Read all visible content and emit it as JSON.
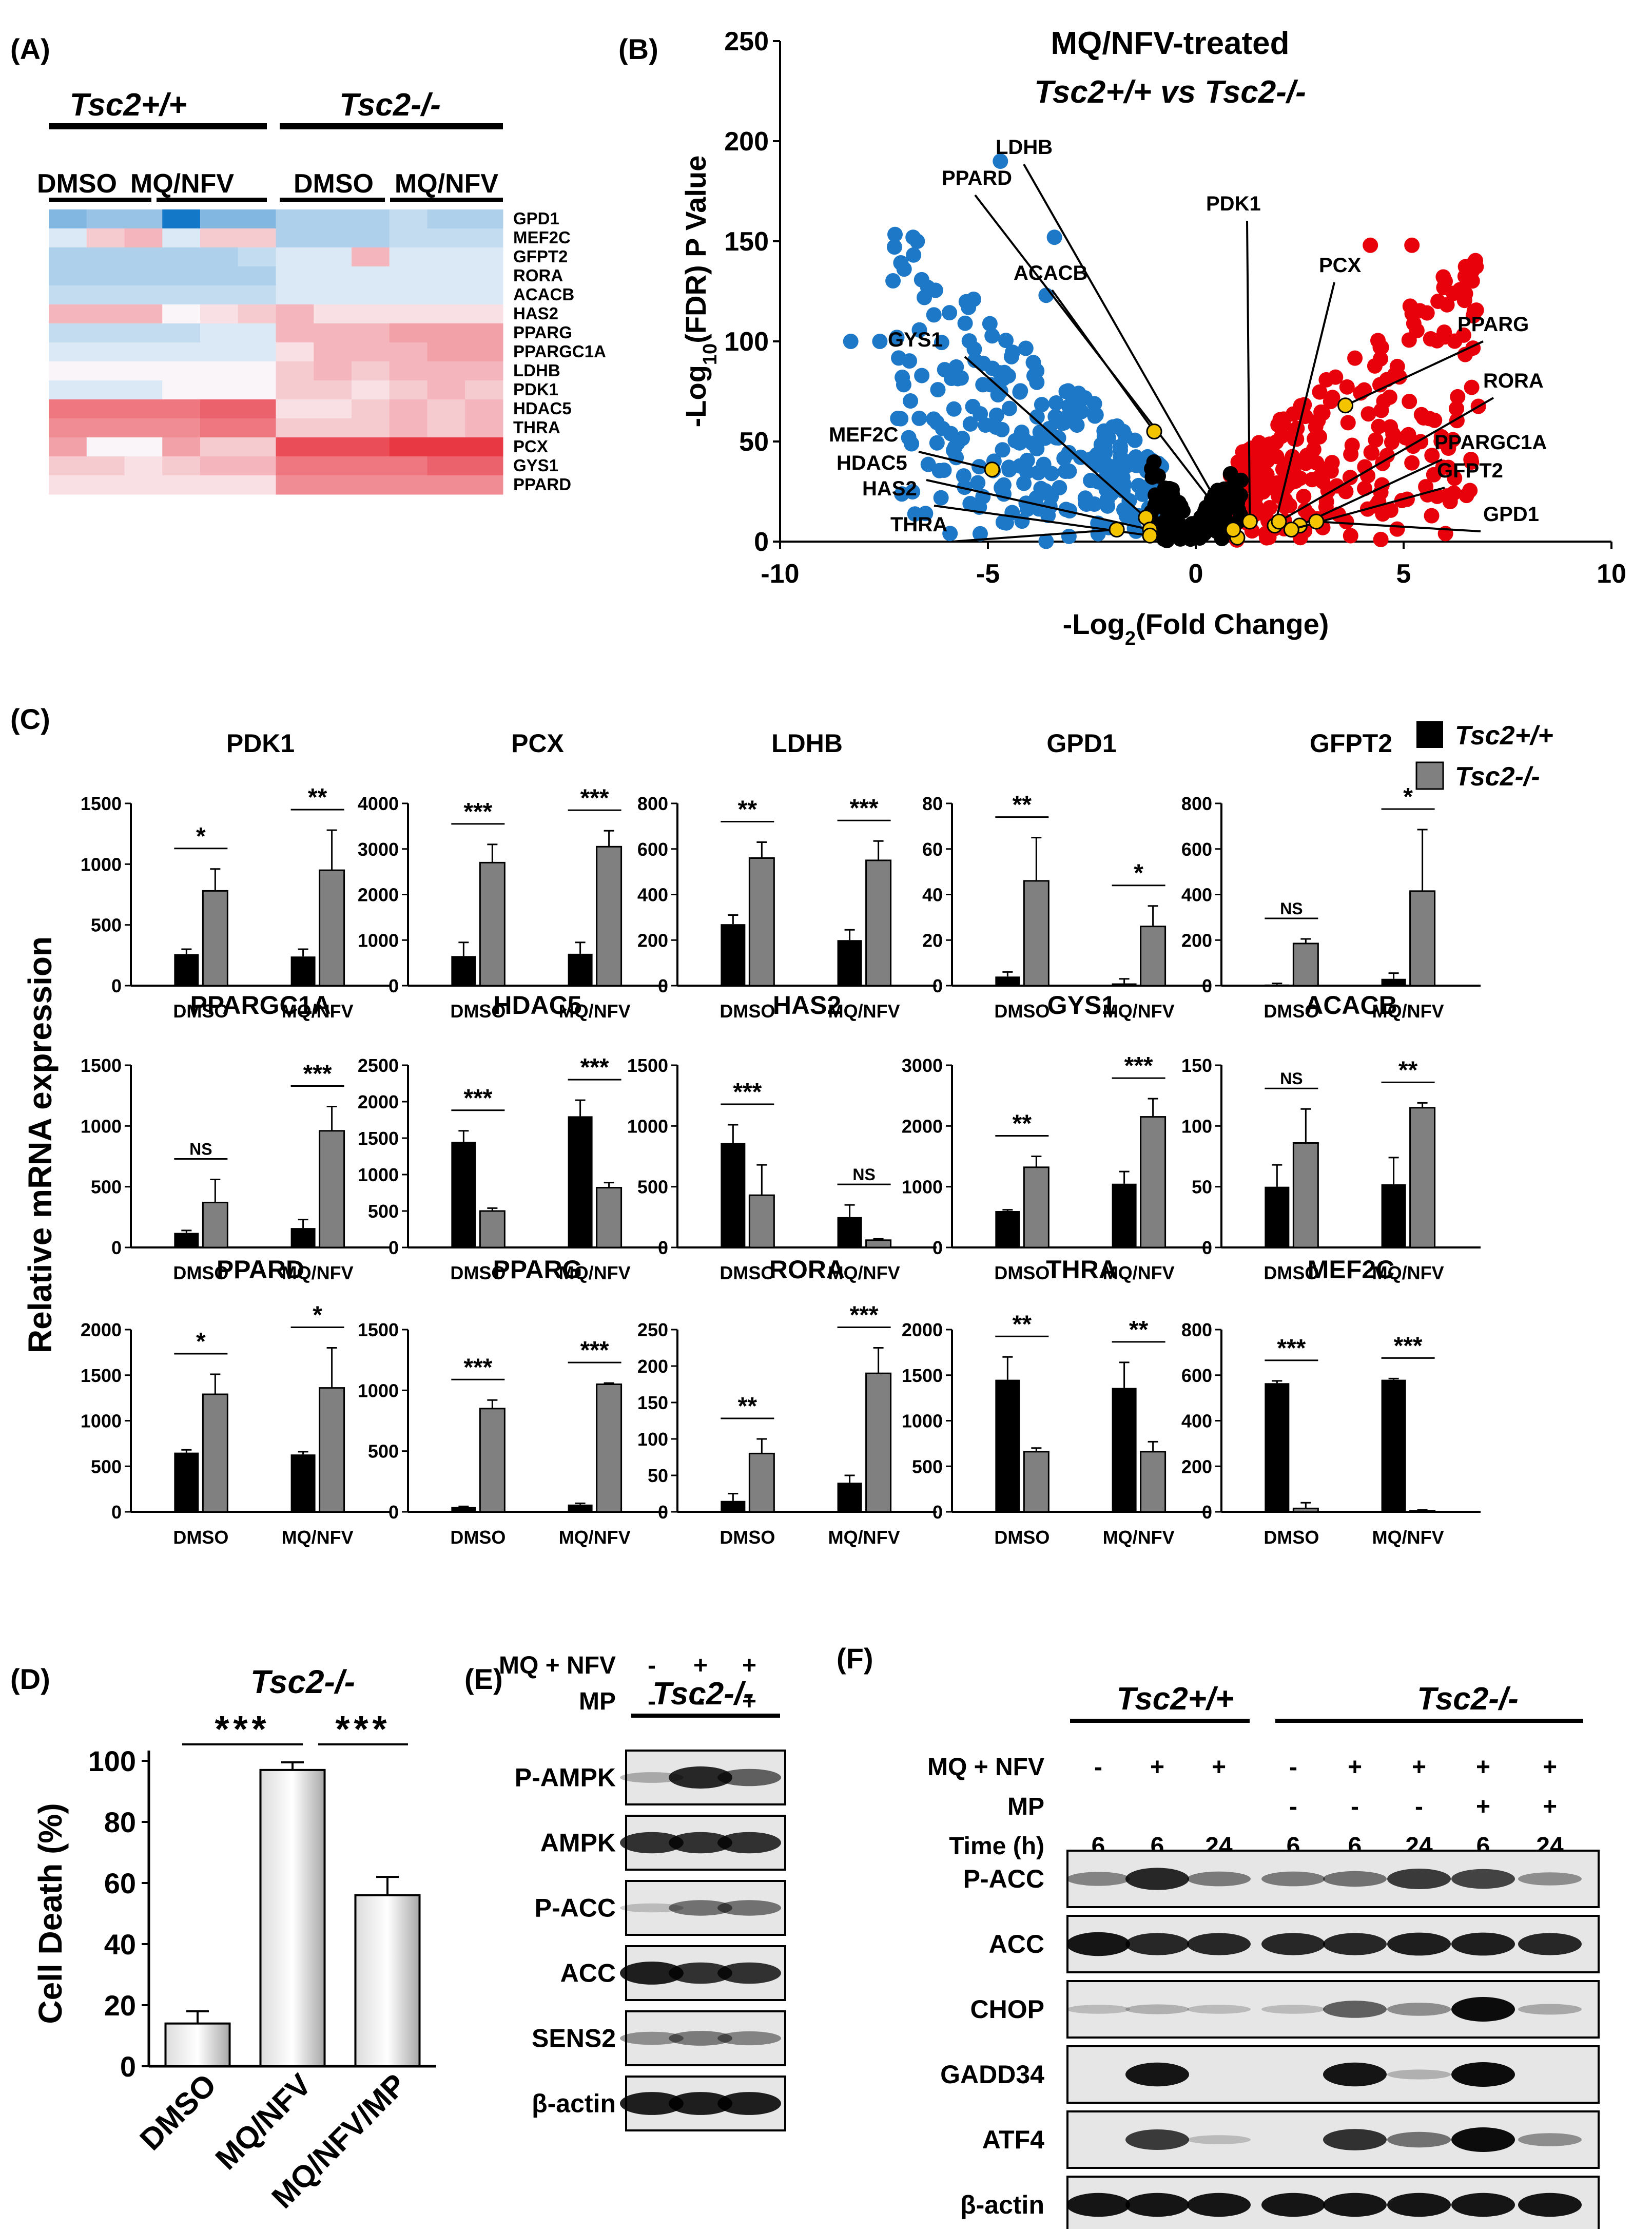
{
  "panelA": {
    "label": "(A)",
    "group_wt": "Tsc2+/+",
    "group_ko": "Tsc2-/-",
    "conditions": [
      "DMSO",
      "MQ/NFV",
      "DMSO",
      "MQ/NFV"
    ],
    "genes": [
      "GPD1",
      "MEF2C",
      "GFPT2",
      "RORA",
      "ACACB",
      "HAS2",
      "PPARG",
      "PPARGC1A",
      "LDHB",
      "PDK1",
      "HDAC5",
      "THRA",
      "PCX",
      "GYS1",
      "PPARD"
    ],
    "heat": [
      [
        -0.5,
        -0.4,
        -0.4,
        -1,
        -0.5,
        -0.5,
        -0.3,
        -0.3,
        -0.3,
        -0.2,
        -0.3,
        -0.3
      ],
      [
        -0.1,
        0.2,
        0.3,
        -0.1,
        0.2,
        0.2,
        -0.3,
        -0.3,
        -0.3,
        -0.2,
        -0.2,
        -0.2
      ],
      [
        -0.3,
        -0.3,
        -0.3,
        -0.3,
        -0.3,
        -0.2,
        -0.1,
        -0.1,
        0.3,
        -0.1,
        -0.1,
        -0.1
      ],
      [
        -0.3,
        -0.3,
        -0.3,
        -0.3,
        -0.3,
        -0.3,
        -0.1,
        -0.1,
        -0.1,
        -0.1,
        -0.1,
        -0.1
      ],
      [
        -0.2,
        -0.2,
        -0.2,
        -0.2,
        -0.2,
        -0.2,
        -0.1,
        -0.1,
        -0.1,
        -0.1,
        -0.1,
        -0.1
      ],
      [
        0.3,
        0.3,
        0.3,
        0,
        0.1,
        0.2,
        0.3,
        0.1,
        0.1,
        0.1,
        0.1,
        0.1
      ],
      [
        -0.2,
        -0.2,
        -0.2,
        -0.2,
        -0.1,
        -0.1,
        0.3,
        0.3,
        0.3,
        0.4,
        0.4,
        0.4
      ],
      [
        -0.1,
        -0.1,
        -0.1,
        -0.1,
        -0.1,
        -0.1,
        0.1,
        0.3,
        0.3,
        0.3,
        0.4,
        0.4
      ],
      [
        0,
        0,
        0,
        0,
        0,
        0,
        0.2,
        0.3,
        0.2,
        0.3,
        0.3,
        0.3
      ],
      [
        -0.1,
        -0.1,
        -0.1,
        0,
        0,
        0,
        0.2,
        0.2,
        0.1,
        0.2,
        0.3,
        0.2
      ],
      [
        0.6,
        0.6,
        0.6,
        0.6,
        0.7,
        0.7,
        0.1,
        0.1,
        0.2,
        0.3,
        0.2,
        0.3
      ],
      [
        0.5,
        0.5,
        0.5,
        0.5,
        0.6,
        0.6,
        0.2,
        0.2,
        0.2,
        0.3,
        0.2,
        0.3
      ],
      [
        0.4,
        0,
        0,
        0.4,
        0.2,
        0.2,
        0.8,
        0.8,
        0.8,
        0.9,
        0.9,
        0.9
      ],
      [
        0.2,
        0.2,
        0.1,
        0.2,
        0.3,
        0.3,
        0.6,
        0.6,
        0.6,
        0.6,
        0.7,
        0.7
      ],
      [
        0.1,
        0.1,
        0.1,
        0.1,
        0.1,
        0.1,
        0.5,
        0.5,
        0.5,
        0.5,
        0.5,
        0.5
      ]
    ]
  },
  "panelB": {
    "label": "(B)",
    "title_line1": "MQ/NFV-treated",
    "title_line2": "Tsc2+/+ vs Tsc2-/-",
    "chart_data": {
      "type": "scatter",
      "title": "MQ/NFV-treated Tsc2+/+ vs Tsc2-/-",
      "xlabel": "-Log2(Fold Change)",
      "ylabel": "-Log10(FDR) P Value",
      "xlim": [
        -10,
        10
      ],
      "ylim": [
        0,
        250
      ],
      "xticks": [
        -10,
        -5,
        0,
        5,
        10
      ],
      "yticks": [
        0,
        50,
        100,
        150,
        200,
        250
      ],
      "colors": {
        "down": "#1e78c8",
        "up": "#e8000a",
        "ns": "#000000",
        "highlight": "#f5c400"
      },
      "labeled_genes": [
        {
          "gene": "LDHB",
          "x": 1.0,
          "y": 2
        },
        {
          "gene": "PPARD",
          "x": 0.9,
          "y": 6
        },
        {
          "gene": "PDK1",
          "x": 1.3,
          "y": 10
        },
        {
          "gene": "PCX",
          "x": 1.9,
          "y": 8
        },
        {
          "gene": "ACACB",
          "x": -1.0,
          "y": 55
        },
        {
          "gene": "PPARG",
          "x": 3.6,
          "y": 68
        },
        {
          "gene": "GYS1",
          "x": -1.2,
          "y": 12
        },
        {
          "gene": "RORA",
          "x": 2.0,
          "y": 10
        },
        {
          "gene": "MEF2C",
          "x": -4.9,
          "y": 36
        },
        {
          "gene": "PPARGC1A",
          "x": 2.5,
          "y": 8
        },
        {
          "gene": "HDAC5",
          "x": -1.1,
          "y": 6
        },
        {
          "gene": "GFPT2",
          "x": 2.3,
          "y": 6
        },
        {
          "gene": "HAS2",
          "x": -1.1,
          "y": 3
        },
        {
          "gene": "GPD1",
          "x": 2.9,
          "y": 10
        },
        {
          "gene": "THRA",
          "x": -1.9,
          "y": 6
        }
      ]
    }
  },
  "panelC": {
    "label": "(C)",
    "ylabel": "Relative mRNA expression",
    "legend": [
      "Tsc2+/+",
      "Tsc2-/-"
    ],
    "xcats": [
      "DMSO",
      "MQ/NFV"
    ],
    "chart_data": [
      {
        "type": "bar",
        "title": "PDK1",
        "ylim": [
          0,
          1500
        ],
        "yticks": [
          0,
          500,
          1000,
          1500
        ],
        "wt": [
          260,
          240
        ],
        "ko": [
          780,
          950
        ],
        "wt_err": [
          40,
          60
        ],
        "ko_err": [
          180,
          330
        ],
        "sig": [
          "*",
          "**"
        ]
      },
      {
        "type": "bar",
        "title": "PCX",
        "ylim": [
          0,
          4000
        ],
        "yticks": [
          0,
          1000,
          2000,
          3000,
          4000
        ],
        "wt": [
          650,
          700
        ],
        "ko": [
          2700,
          3050
        ],
        "wt_err": [
          300,
          250
        ],
        "ko_err": [
          400,
          350
        ],
        "sig": [
          "***",
          "***"
        ]
      },
      {
        "type": "bar",
        "title": "LDHB",
        "ylim": [
          0,
          800
        ],
        "yticks": [
          0,
          200,
          400,
          600,
          800
        ],
        "wt": [
          270,
          200
        ],
        "ko": [
          560,
          550
        ],
        "wt_err": [
          40,
          45
        ],
        "ko_err": [
          70,
          85
        ],
        "sig": [
          "**",
          "***"
        ]
      },
      {
        "type": "bar",
        "title": "GPD1",
        "ylim": [
          0,
          80
        ],
        "yticks": [
          0,
          20,
          40,
          60,
          80
        ],
        "wt": [
          4,
          1
        ],
        "ko": [
          46,
          26
        ],
        "wt_err": [
          2,
          2
        ],
        "ko_err": [
          19,
          9
        ],
        "sig": [
          "**",
          "*"
        ]
      },
      {
        "type": "bar",
        "title": "GFPT2",
        "ylim": [
          0,
          800
        ],
        "yticks": [
          0,
          200,
          400,
          600,
          800
        ],
        "wt": [
          5,
          30
        ],
        "ko": [
          185,
          415
        ],
        "wt_err": [
          5,
          25
        ],
        "ko_err": [
          20,
          270
        ],
        "sig": [
          "NS",
          "*"
        ]
      },
      {
        "type": "bar",
        "title": "PPARGC1A",
        "ylim": [
          0,
          1500
        ],
        "yticks": [
          0,
          500,
          1000,
          1500
        ],
        "wt": [
          120,
          160
        ],
        "ko": [
          370,
          960
        ],
        "wt_err": [
          20,
          70
        ],
        "ko_err": [
          190,
          200
        ],
        "sig": [
          "NS",
          "***"
        ]
      },
      {
        "type": "bar",
        "title": "HDAC5",
        "ylim": [
          0,
          2500
        ],
        "yticks": [
          0,
          500,
          1000,
          1500,
          2000,
          2500
        ],
        "wt": [
          1450,
          1800
        ],
        "ko": [
          500,
          820
        ],
        "wt_err": [
          150,
          220
        ],
        "ko_err": [
          40,
          70
        ],
        "sig": [
          "***",
          "***"
        ]
      },
      {
        "type": "bar",
        "title": "HAS2",
        "ylim": [
          0,
          1500
        ],
        "yticks": [
          0,
          500,
          1000,
          1500
        ],
        "wt": [
          860,
          250
        ],
        "ko": [
          430,
          60
        ],
        "wt_err": [
          150,
          100
        ],
        "ko_err": [
          250,
          10
        ],
        "sig": [
          "***",
          "NS"
        ]
      },
      {
        "type": "bar",
        "title": "GYS1",
        "ylim": [
          0,
          3000
        ],
        "yticks": [
          0,
          1000,
          2000,
          3000
        ],
        "wt": [
          600,
          1050
        ],
        "ko": [
          1320,
          2150
        ],
        "wt_err": [
          20,
          200
        ],
        "ko_err": [
          180,
          300
        ],
        "sig": [
          "**",
          "***"
        ]
      },
      {
        "type": "bar",
        "title": "ACACB",
        "ylim": [
          0,
          150
        ],
        "yticks": [
          0,
          50,
          100,
          150
        ],
        "wt": [
          50,
          52
        ],
        "ko": [
          86,
          115
        ],
        "wt_err": [
          18,
          22
        ],
        "ko_err": [
          28,
          4
        ],
        "sig": [
          "NS",
          "**"
        ]
      },
      {
        "type": "bar",
        "title": "PPARD",
        "ylim": [
          0,
          2000
        ],
        "yticks": [
          0,
          500,
          1000,
          1500,
          2000
        ],
        "wt": [
          650,
          630
        ],
        "ko": [
          1290,
          1360
        ],
        "wt_err": [
          30,
          30
        ],
        "ko_err": [
          220,
          440
        ],
        "sig": [
          "*",
          "*"
        ]
      },
      {
        "type": "bar",
        "title": "PPARG",
        "ylim": [
          0,
          1500
        ],
        "yticks": [
          0,
          500,
          1000,
          1500
        ],
        "wt": [
          40,
          60
        ],
        "ko": [
          850,
          1050
        ],
        "wt_err": [
          5,
          10
        ],
        "ko_err": [
          70,
          10
        ],
        "sig": [
          "***",
          "***"
        ]
      },
      {
        "type": "bar",
        "title": "RORA",
        "ylim": [
          0,
          250
        ],
        "yticks": [
          0,
          50,
          100,
          150,
          200,
          250
        ],
        "wt": [
          15,
          40
        ],
        "ko": [
          80,
          190
        ],
        "wt_err": [
          10,
          10
        ],
        "ko_err": [
          20,
          35
        ],
        "sig": [
          "**",
          "***"
        ]
      },
      {
        "type": "bar",
        "title": "THRA",
        "ylim": [
          0,
          2000
        ],
        "yticks": [
          0,
          500,
          1000,
          1500,
          2000
        ],
        "wt": [
          1450,
          1360
        ],
        "ko": [
          660,
          660
        ],
        "wt_err": [
          250,
          280
        ],
        "ko_err": [
          40,
          110
        ],
        "sig": [
          "**",
          "**"
        ]
      },
      {
        "type": "bar",
        "title": "MEF2C",
        "ylim": [
          0,
          800
        ],
        "yticks": [
          0,
          200,
          400,
          600,
          800
        ],
        "wt": [
          565,
          580
        ],
        "ko": [
          15,
          5
        ],
        "wt_err": [
          10,
          5
        ],
        "ko_err": [
          25,
          3
        ],
        "sig": [
          "***",
          "***"
        ]
      }
    ]
  },
  "panelD": {
    "label": "(D)",
    "title": "Tsc2-/-",
    "chart_data": {
      "type": "bar",
      "title": "Tsc2-/-",
      "ylabel": "Cell Death (%)",
      "ylim": [
        0,
        100
      ],
      "yticks": [
        0,
        20,
        40,
        60,
        80,
        100
      ],
      "categories": [
        "DMSO",
        "MQ/NFV",
        "MQ/NFV/MP"
      ],
      "values": [
        14,
        97,
        56
      ],
      "errors": [
        4,
        2.5,
        6
      ],
      "sig": [
        "***",
        "***"
      ]
    }
  },
  "panelE": {
    "label": "(E)",
    "group": "Tsc2-/-",
    "treat_rows": [
      {
        "name": "MQ + NFV",
        "values": [
          "-",
          "+",
          "+"
        ]
      },
      {
        "name": "MP",
        "values": [
          "-",
          "-",
          "+"
        ]
      }
    ],
    "blots": [
      {
        "name": "P-AMPK",
        "bands": [
          0.15,
          0.85,
          0.55
        ]
      },
      {
        "name": "AMPK",
        "bands": [
          0.8,
          0.8,
          0.8
        ]
      },
      {
        "name": "P-ACC",
        "bands": [
          0.05,
          0.45,
          0.45
        ]
      },
      {
        "name": "ACC",
        "bands": [
          0.9,
          0.8,
          0.8
        ]
      },
      {
        "name": "SENS2",
        "bands": [
          0.3,
          0.4,
          0.35
        ]
      },
      {
        "name": "β-actin",
        "bands": [
          0.9,
          0.9,
          0.9
        ]
      }
    ]
  },
  "panelF": {
    "label": "(F)",
    "group_wt": "Tsc2+/+",
    "group_ko": "Tsc2-/-",
    "treat_rows": [
      {
        "name": "MQ + NFV",
        "values": [
          "-",
          "+",
          "+",
          "-",
          "+",
          "+",
          "+",
          "+"
        ]
      },
      {
        "name": "MP",
        "values": [
          "",
          "",
          "",
          "-",
          "-",
          "-",
          "+",
          "+"
        ]
      },
      {
        "name": "Time (h)",
        "values": [
          "6",
          "6",
          "24",
          "6",
          "6",
          "24",
          "6",
          "24"
        ]
      }
    ],
    "blots": [
      {
        "name": "P-ACC",
        "bands": [
          0.35,
          0.85,
          0.4,
          0.4,
          0.45,
          0.75,
          0.7,
          0.3
        ]
      },
      {
        "name": "ACC",
        "bands": [
          0.95,
          0.85,
          0.85,
          0.85,
          0.85,
          0.9,
          0.9,
          0.85
        ]
      },
      {
        "name": "CHOP",
        "bands": [
          0.05,
          0.1,
          0.05,
          0.05,
          0.55,
          0.3,
          1.0,
          0.15
        ]
      },
      {
        "name": "GADD34",
        "bands": [
          0.0,
          0.95,
          0.0,
          0.0,
          0.95,
          0.1,
          1.0,
          0.0
        ]
      },
      {
        "name": "ATF4",
        "bands": [
          0.0,
          0.75,
          0.05,
          0.0,
          0.8,
          0.45,
          1.0,
          0.3
        ]
      },
      {
        "name": "β-actin",
        "bands": [
          0.95,
          0.95,
          0.95,
          0.95,
          0.95,
          0.95,
          0.95,
          0.95
        ]
      }
    ]
  }
}
